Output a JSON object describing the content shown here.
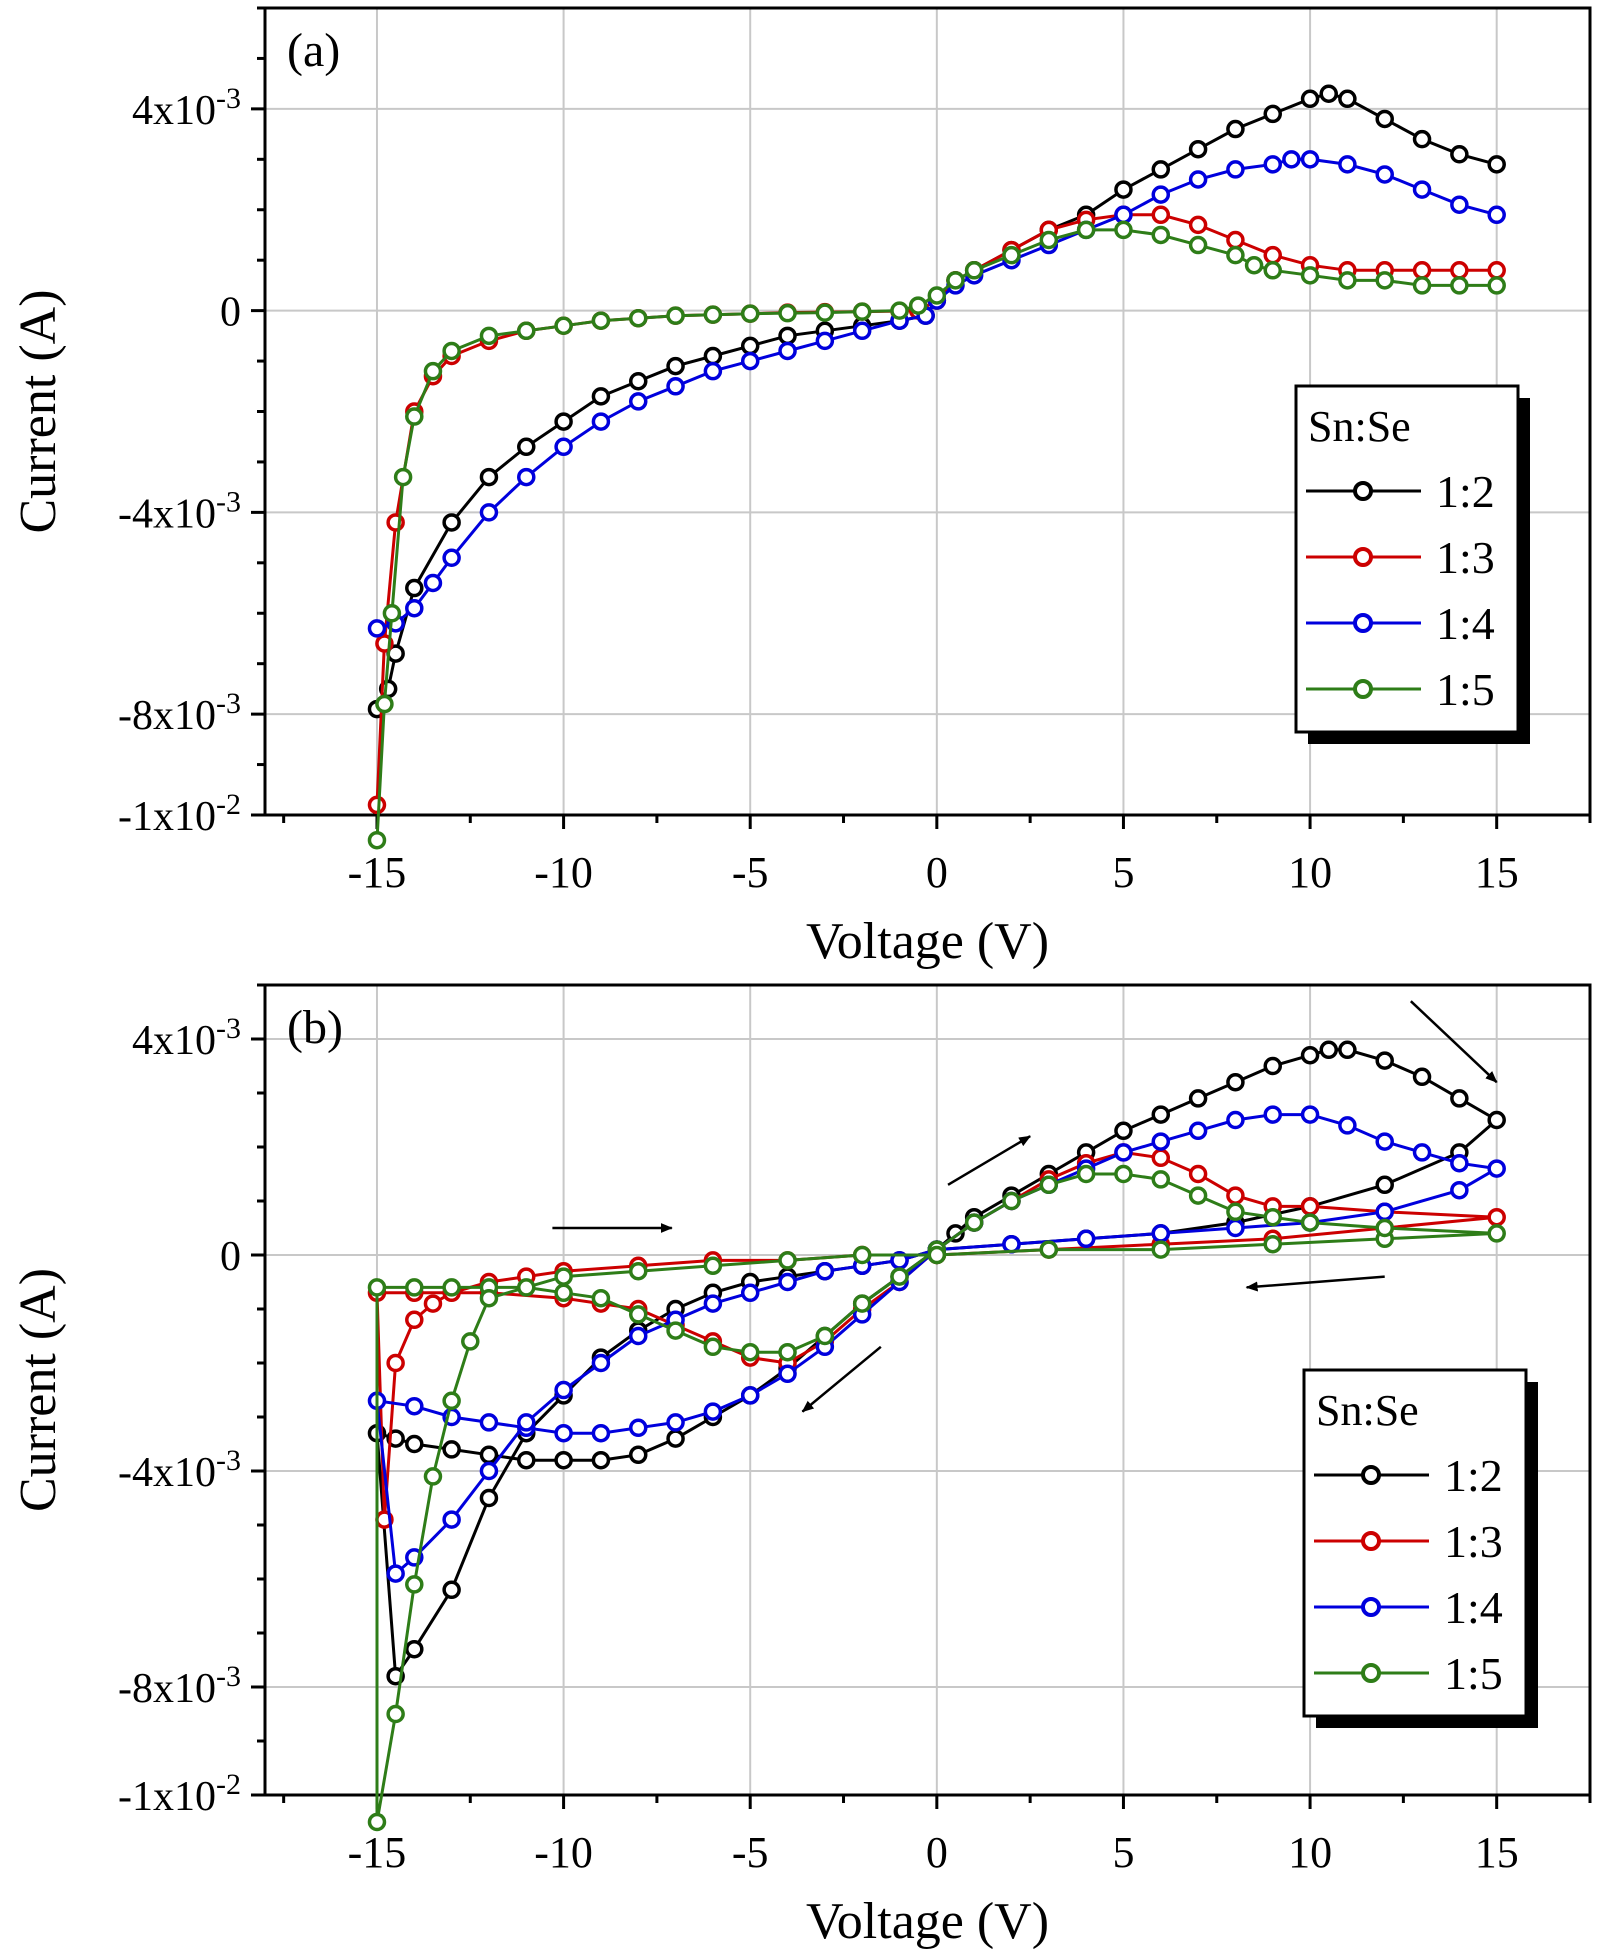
{
  "chart_data": [
    {
      "type": "line",
      "panel_label": "(a)",
      "xlabel": "Voltage (V)",
      "ylabel": "Current (A)",
      "xlim": [
        -18,
        17.5
      ],
      "ylim": [
        -0.01,
        0.006
      ],
      "xticks": [
        -15,
        -10,
        -5,
        0,
        5,
        10,
        15
      ],
      "yticks": [
        {
          "value": 0.004,
          "base": "4x10",
          "exp": "-3"
        },
        {
          "value": 0,
          "base": "0",
          "exp": ""
        },
        {
          "value": -0.004,
          "base": "-4x10",
          "exp": "-3"
        },
        {
          "value": -0.008,
          "base": "-8x10",
          "exp": "-3"
        },
        {
          "value": -0.01,
          "base": "-1x10",
          "exp": "-2"
        }
      ],
      "grid": true,
      "legend": {
        "title": "Sn:Se",
        "position": "right"
      },
      "series": [
        {
          "name": "1:2",
          "color": "#000000",
          "x": [
            -15,
            -14.7,
            -14.5,
            -14,
            -13,
            -12,
            -11,
            -10,
            -9,
            -8,
            -7,
            -6,
            -5,
            -4,
            -3,
            -2,
            -1,
            -0.3,
            0,
            0.5,
            1,
            2,
            3,
            4,
            5,
            6,
            7,
            8,
            9,
            10,
            10.5,
            11,
            12,
            13,
            14,
            15
          ],
          "y": [
            -0.0079,
            -0.0075,
            -0.0068,
            -0.0055,
            -0.0042,
            -0.0033,
            -0.0027,
            -0.0022,
            -0.0017,
            -0.0014,
            -0.0011,
            -0.0009,
            -0.0007,
            -0.0005,
            -0.0004,
            -0.0003,
            -0.0002,
            -0.0001,
            0.0002,
            0.0006,
            0.0008,
            0.0012,
            0.0016,
            0.0019,
            0.0024,
            0.0028,
            0.0032,
            0.0036,
            0.0039,
            0.0042,
            0.0043,
            0.0042,
            0.0038,
            0.0034,
            0.0031,
            0.0029
          ]
        },
        {
          "name": "1:3",
          "color": "#cc0000",
          "x": [
            -15,
            -14.8,
            -14.5,
            -14,
            -13.5,
            -13,
            -12,
            -11,
            -10,
            -9,
            -8,
            -7,
            -6,
            -5,
            -4,
            -3,
            -2,
            -1,
            -0.5,
            0,
            0.5,
            1,
            2,
            3,
            4,
            5,
            6,
            7,
            8,
            9,
            10,
            11,
            12,
            13,
            14,
            15
          ],
          "y": [
            -0.0098,
            -0.0066,
            -0.0042,
            -0.002,
            -0.0013,
            -0.0009,
            -0.0006,
            -0.0004,
            -0.0003,
            -0.0002,
            -0.00015,
            -0.0001,
            -8e-05,
            -6e-05,
            -4e-05,
            -3e-05,
            -2e-05,
            -1e-05,
            0.0,
            0.0002,
            0.0006,
            0.0008,
            0.0012,
            0.0016,
            0.0018,
            0.0019,
            0.0019,
            0.0017,
            0.0014,
            0.0011,
            0.0009,
            0.0008,
            0.0008,
            0.0008,
            0.0008,
            0.0008
          ]
        },
        {
          "name": "1:4",
          "color": "#0000dd",
          "x": [
            -15,
            -14.5,
            -14,
            -13.5,
            -13,
            -12,
            -11,
            -10,
            -9,
            -8,
            -7,
            -6,
            -5,
            -4,
            -3,
            -2,
            -1,
            -0.3,
            0,
            0.5,
            1,
            2,
            3,
            4,
            5,
            6,
            7,
            8,
            9,
            9.5,
            10,
            11,
            12,
            13,
            14,
            15
          ],
          "y": [
            -0.0063,
            -0.0062,
            -0.0059,
            -0.0054,
            -0.0049,
            -0.004,
            -0.0033,
            -0.0027,
            -0.0022,
            -0.0018,
            -0.0015,
            -0.0012,
            -0.001,
            -0.0008,
            -0.0006,
            -0.0004,
            -0.0002,
            -0.0001,
            0.0002,
            0.0005,
            0.0007,
            0.001,
            0.0013,
            0.0016,
            0.0019,
            0.0023,
            0.0026,
            0.0028,
            0.0029,
            0.003,
            0.003,
            0.0029,
            0.0027,
            0.0024,
            0.0021,
            0.0019
          ]
        },
        {
          "name": "1:5",
          "color": "#2e7d18",
          "x": [
            -15,
            -14.8,
            -14.6,
            -14.3,
            -14,
            -13.5,
            -13,
            -12,
            -11,
            -10,
            -9,
            -8,
            -7,
            -6,
            -5,
            -4,
            -3,
            -2,
            -1,
            -0.5,
            0,
            0.5,
            1,
            2,
            3,
            4,
            5,
            6,
            7,
            8,
            8.5,
            9,
            10,
            11,
            12,
            13,
            14,
            15
          ],
          "y": [
            -0.0105,
            -0.0078,
            -0.006,
            -0.0033,
            -0.0021,
            -0.0012,
            -0.0008,
            -0.0005,
            -0.0004,
            -0.0003,
            -0.0002,
            -0.00015,
            -0.0001,
            -8e-05,
            -6e-05,
            -5e-05,
            -4e-05,
            -2e-05,
            0.0,
            0.0001,
            0.0003,
            0.0006,
            0.0008,
            0.0011,
            0.0014,
            0.0016,
            0.0016,
            0.0015,
            0.0013,
            0.0011,
            0.0009,
            0.0008,
            0.0007,
            0.0006,
            0.0006,
            0.0005,
            0.0005,
            0.0005
          ]
        }
      ]
    },
    {
      "type": "line",
      "panel_label": "(b)",
      "xlabel": "Voltage (V)",
      "ylabel": "Current (A)",
      "xlim": [
        -18,
        17.5
      ],
      "ylim": [
        -0.01,
        0.005
      ],
      "xticks": [
        -15,
        -10,
        -5,
        0,
        5,
        10,
        15
      ],
      "yticks": [
        {
          "value": 0.004,
          "base": "4x10",
          "exp": "-3"
        },
        {
          "value": 0,
          "base": "0",
          "exp": ""
        },
        {
          "value": -0.004,
          "base": "-4x10",
          "exp": "-3"
        },
        {
          "value": -0.008,
          "base": "-8x10",
          "exp": "-3"
        },
        {
          "value": -0.01,
          "base": "-1x10",
          "exp": "-2"
        }
      ],
      "grid": true,
      "legend": {
        "title": "Sn:Se",
        "position": "bottom-right"
      },
      "arrows": [
        {
          "x1": -10.3,
          "y1": 0.0005,
          "x2": -7.1,
          "y2": 0.0005
        },
        {
          "x1": 0.3,
          "y1": 0.0013,
          "x2": 2.5,
          "y2": 0.0022
        },
        {
          "x1": 12.7,
          "y1": 0.0047,
          "x2": 15,
          "y2": 0.0032
        },
        {
          "x1": 12,
          "y1": -0.0004,
          "x2": 8.3,
          "y2": -0.0006
        },
        {
          "x1": -1.5,
          "y1": -0.0017,
          "x2": -3.6,
          "y2": -0.0029
        }
      ],
      "series": [
        {
          "name": "1:2",
          "color": "#000000",
          "x": [
            0,
            2,
            4,
            6,
            8,
            10,
            12,
            14,
            15,
            14,
            13,
            12,
            11,
            10.5,
            10,
            9,
            8,
            7,
            6,
            5,
            4,
            3,
            2,
            1,
            0.5,
            0,
            -1,
            -2,
            -3,
            -4,
            -5,
            -6,
            -7,
            -8,
            -9,
            -10,
            -11,
            -12,
            -13,
            -14,
            -14.5,
            -15,
            -14.5,
            -14,
            -13,
            -12,
            -11,
            -10,
            -9,
            -8,
            -7,
            -6,
            -5,
            -4,
            -3,
            -2,
            -1,
            0
          ],
          "y": [
            0.0001,
            0.0002,
            0.0003,
            0.0004,
            0.0006,
            0.0009,
            0.0013,
            0.0019,
            0.0025,
            0.0029,
            0.0033,
            0.0036,
            0.0038,
            0.0038,
            0.0037,
            0.0035,
            0.0032,
            0.0029,
            0.0026,
            0.0023,
            0.0019,
            0.0015,
            0.0011,
            0.0007,
            0.0004,
            0.0001,
            -0.0004,
            -0.0009,
            -0.0015,
            -0.0021,
            -0.0026,
            -0.003,
            -0.0034,
            -0.0037,
            -0.0038,
            -0.0038,
            -0.0038,
            -0.0037,
            -0.0036,
            -0.0035,
            -0.0034,
            -0.0033,
            -0.0078,
            -0.0073,
            -0.0062,
            -0.0045,
            -0.0033,
            -0.0026,
            -0.0019,
            -0.0014,
            -0.001,
            -0.0007,
            -0.0005,
            -0.0004,
            -0.0003,
            -0.0002,
            -0.0001,
            0.0001
          ]
        },
        {
          "name": "1:3",
          "color": "#cc0000",
          "x": [
            0,
            3,
            6,
            9,
            12,
            15,
            12,
            10,
            9,
            8,
            7,
            6,
            5,
            4,
            3,
            2,
            1,
            0,
            -1,
            -2,
            -3,
            -4,
            -5,
            -6,
            -7,
            -8,
            -9,
            -10,
            -12,
            -14,
            -15,
            -14.8,
            -14.5,
            -14,
            -13.5,
            -13,
            -12,
            -11,
            -10,
            -8,
            -6,
            -4,
            -2,
            0
          ],
          "y": [
            0.0,
            0.0001,
            0.0002,
            0.0003,
            0.0005,
            0.0007,
            0.0008,
            0.0009,
            0.0009,
            0.0011,
            0.0015,
            0.0018,
            0.0019,
            0.0017,
            0.0014,
            0.001,
            0.0006,
            0.0001,
            -0.0005,
            -0.001,
            -0.0016,
            -0.002,
            -0.0019,
            -0.0016,
            -0.0013,
            -0.001,
            -0.0009,
            -0.0008,
            -0.0007,
            -0.0007,
            -0.0007,
            -0.0049,
            -0.002,
            -0.0012,
            -0.0009,
            -0.0007,
            -0.0005,
            -0.0004,
            -0.0003,
            -0.0002,
            -0.0001,
            -0.0001,
            0.0,
            0.0
          ]
        },
        {
          "name": "1:4",
          "color": "#0000dd",
          "x": [
            0,
            2,
            4,
            6,
            8,
            10,
            12,
            14,
            15,
            14,
            13,
            12,
            11,
            10,
            9,
            8,
            7,
            6,
            5,
            4,
            3,
            2,
            1,
            0,
            -1,
            -2,
            -3,
            -4,
            -5,
            -6,
            -7,
            -8,
            -9,
            -10,
            -11,
            -12,
            -13,
            -14,
            -15,
            -14.5,
            -14,
            -13,
            -12,
            -11,
            -10,
            -9,
            -8,
            -7,
            -6,
            -5,
            -4,
            -3,
            -2,
            -1,
            0
          ],
          "y": [
            0.0001,
            0.0002,
            0.0003,
            0.0004,
            0.0005,
            0.0006,
            0.0008,
            0.0012,
            0.0016,
            0.0017,
            0.0019,
            0.0021,
            0.0024,
            0.0026,
            0.0026,
            0.0025,
            0.0023,
            0.0021,
            0.0019,
            0.0016,
            0.0013,
            0.001,
            0.0006,
            0.0001,
            -0.0005,
            -0.0011,
            -0.0017,
            -0.0022,
            -0.0026,
            -0.0029,
            -0.0031,
            -0.0032,
            -0.0033,
            -0.0033,
            -0.0032,
            -0.0031,
            -0.003,
            -0.0028,
            -0.0027,
            -0.0059,
            -0.0056,
            -0.0049,
            -0.004,
            -0.0031,
            -0.0025,
            -0.002,
            -0.0015,
            -0.0012,
            -0.0009,
            -0.0007,
            -0.0005,
            -0.0003,
            -0.0002,
            -0.0001,
            0.0001
          ]
        },
        {
          "name": "1:5",
          "color": "#2e7d18",
          "x": [
            0,
            3,
            6,
            9,
            12,
            15,
            12,
            10,
            9,
            8,
            7,
            6,
            5,
            4,
            3,
            2,
            1,
            0,
            -1,
            -2,
            -3,
            -4,
            -5,
            -6,
            -7,
            -8,
            -9,
            -10,
            -11,
            -12,
            -13,
            -14,
            -15,
            -15,
            -14.5,
            -14,
            -13.5,
            -13,
            -12.5,
            -12,
            -10,
            -8,
            -6,
            -4,
            -2,
            0
          ],
          "y": [
            0.0,
            0.0001,
            0.0001,
            0.0002,
            0.0003,
            0.0004,
            0.0005,
            0.0006,
            0.0007,
            0.0008,
            0.0011,
            0.0014,
            0.0015,
            0.0015,
            0.0013,
            0.001,
            0.0006,
            0.0001,
            -0.0004,
            -0.0009,
            -0.0015,
            -0.0018,
            -0.0018,
            -0.0017,
            -0.0014,
            -0.0011,
            -0.0008,
            -0.0007,
            -0.0006,
            -0.0006,
            -0.0006,
            -0.0006,
            -0.0006,
            -0.0105,
            -0.0085,
            -0.0061,
            -0.0041,
            -0.0027,
            -0.0016,
            -0.0008,
            -0.0004,
            -0.0003,
            -0.0002,
            -0.0001,
            0.0,
            0.0
          ]
        }
      ]
    }
  ]
}
